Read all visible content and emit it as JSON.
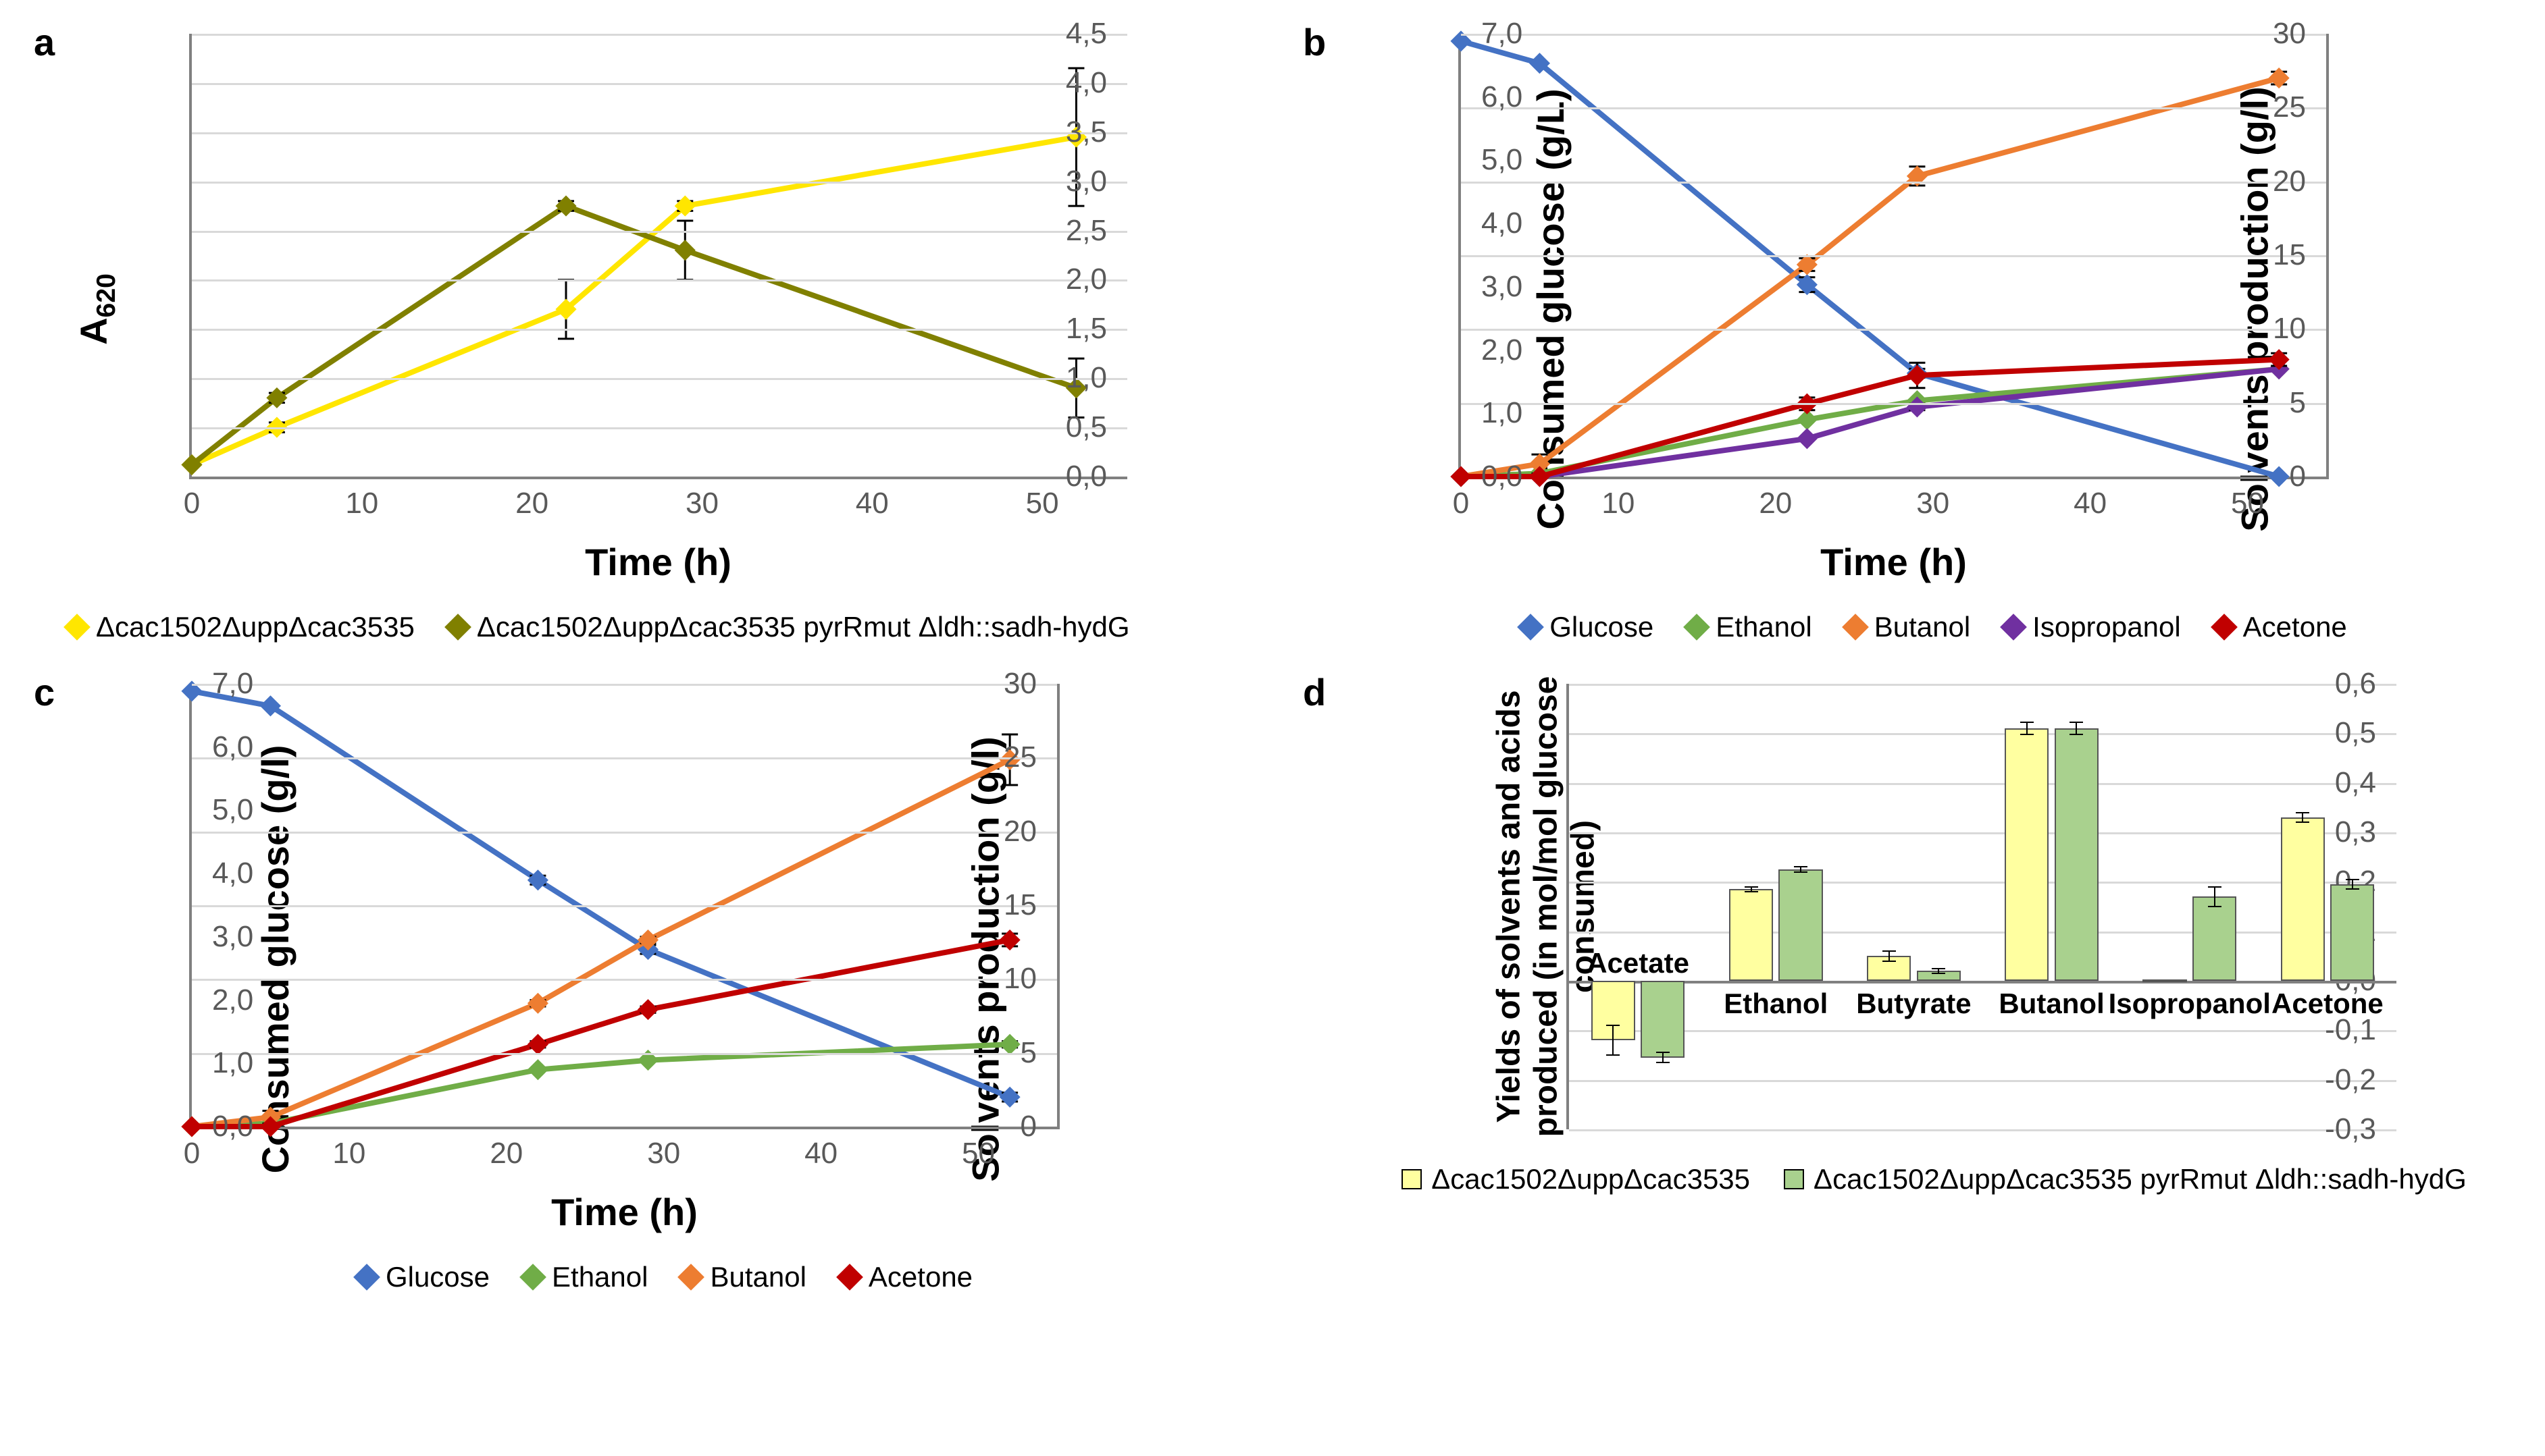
{
  "colors": {
    "yellow": "#ffe600",
    "olive": "#808000",
    "blue": "#4472c4",
    "green": "#70ad47",
    "orange": "#ed7d31",
    "purple": "#7030a0",
    "red": "#c00000",
    "grid": "#d9d9d9",
    "axis": "#808080",
    "bar_yellow": "#ffffa0",
    "bar_green": "#a9d18e"
  },
  "panel_a": {
    "type": "line",
    "label": "a",
    "xlabel": "Time (h)",
    "ylabel_html": "A<sub>620</sub>",
    "xlim": [
      0,
      55
    ],
    "ylim": [
      0,
      4.5
    ],
    "xticks": [
      0,
      10,
      20,
      30,
      40,
      50
    ],
    "yticks": [
      "0,0",
      "0,5",
      "1,0",
      "1,5",
      "2,0",
      "2,5",
      "3,0",
      "3,5",
      "4,0",
      "4,5"
    ],
    "ytick_vals": [
      0,
      0.5,
      1,
      1.5,
      2,
      2.5,
      3,
      3.5,
      4,
      4.5
    ],
    "series": [
      {
        "name": "Δcac1502ΔuppΔcac3535",
        "color": "#ffe600",
        "x": [
          0,
          5,
          22,
          29,
          52
        ],
        "y": [
          0.12,
          0.5,
          1.7,
          2.75,
          3.45
        ],
        "err": [
          0,
          0.05,
          0.3,
          0.05,
          0.7
        ]
      },
      {
        "name": "Δcac1502ΔuppΔcac3535 pyrRmut Δldh::sadh-hydG",
        "color": "#808000",
        "x": [
          0,
          5,
          22,
          29,
          52
        ],
        "y": [
          0.12,
          0.8,
          2.75,
          2.3,
          0.9
        ],
        "err": [
          0,
          0.05,
          0.05,
          0.3,
          0.3
        ]
      }
    ],
    "legend": [
      {
        "label": "Δcac1502ΔuppΔcac3535",
        "color": "#ffe600"
      },
      {
        "label": "Δcac1502ΔuppΔcac3535 pyrRmut Δldh::sadh-hydG",
        "color": "#808000"
      }
    ]
  },
  "panel_b": {
    "type": "line_dual",
    "label": "b",
    "xlabel": "Time (h)",
    "ylabel": "Consumed glucose (g/L)",
    "ylabel2": "Solvents production (g/l)",
    "xlim": [
      0,
      55
    ],
    "ylim": [
      0,
      30
    ],
    "ylim2": [
      0,
      7
    ],
    "xticks": [
      0,
      10,
      20,
      30,
      40,
      50
    ],
    "yticks": [
      0,
      5,
      10,
      15,
      20,
      25,
      30
    ],
    "yticks2": [
      "0,0",
      "1,0",
      "2,0",
      "3,0",
      "4,0",
      "5,0",
      "6,0",
      "7,0"
    ],
    "ytick2_vals": [
      0,
      1,
      2,
      3,
      4,
      5,
      6,
      7
    ],
    "series": [
      {
        "name": "Glucose",
        "axis": 1,
        "color": "#4472c4",
        "x": [
          0,
          5,
          22,
          29,
          52
        ],
        "y": [
          29.5,
          28,
          13,
          7,
          0
        ],
        "err": [
          0,
          0,
          0.5,
          0.3,
          0
        ]
      },
      {
        "name": "Ethanol",
        "axis": 2,
        "color": "#70ad47",
        "x": [
          0,
          5,
          22,
          29,
          52
        ],
        "y": [
          0,
          0.05,
          0.9,
          1.2,
          1.7
        ],
        "err": [
          0,
          0,
          0,
          0,
          0
        ]
      },
      {
        "name": "Butanol",
        "axis": 2,
        "color": "#ed7d31",
        "x": [
          0,
          5,
          22,
          29,
          52
        ],
        "y": [
          0,
          0.2,
          3.35,
          4.75,
          6.3
        ],
        "err": [
          0,
          0.15,
          0.1,
          0.15,
          0.1
        ]
      },
      {
        "name": "Isopropanol",
        "axis": 2,
        "color": "#7030a0",
        "x": [
          0,
          5,
          22,
          29,
          52
        ],
        "y": [
          0,
          0,
          0.6,
          1.1,
          1.7
        ],
        "err": [
          0,
          0,
          0,
          0.05,
          0
        ]
      },
      {
        "name": "Acetone",
        "axis": 2,
        "color": "#c00000",
        "x": [
          0,
          5,
          22,
          29,
          52
        ],
        "y": [
          0,
          0,
          1.15,
          1.6,
          1.85
        ],
        "err": [
          0,
          0,
          0.1,
          0.2,
          0.1
        ]
      }
    ],
    "legend": [
      {
        "label": "Glucose",
        "color": "#4472c4"
      },
      {
        "label": "Ethanol",
        "color": "#70ad47"
      },
      {
        "label": "Butanol",
        "color": "#ed7d31"
      },
      {
        "label": "Isopropanol",
        "color": "#7030a0"
      },
      {
        "label": "Acetone",
        "color": "#c00000"
      }
    ]
  },
  "panel_c": {
    "type": "line_dual",
    "label": "c",
    "xlabel": "Time (h)",
    "ylabel": "Consumed glucose (g/l)",
    "ylabel2": "Solvents production (g/l)",
    "xlim": [
      0,
      55
    ],
    "ylim": [
      0,
      30
    ],
    "ylim2": [
      0,
      7
    ],
    "xticks": [
      0,
      10,
      20,
      30,
      40,
      50
    ],
    "yticks": [
      0,
      5,
      10,
      15,
      20,
      25,
      30
    ],
    "yticks2": [
      "0,0",
      "1,0",
      "2,0",
      "3,0",
      "4,0",
      "5,0",
      "6,0",
      "7,0"
    ],
    "ytick2_vals": [
      0,
      1,
      2,
      3,
      4,
      5,
      6,
      7
    ],
    "series": [
      {
        "name": "Glucose",
        "axis": 1,
        "color": "#4472c4",
        "x": [
          0,
          5,
          22,
          29,
          52
        ],
        "y": [
          29.5,
          28.5,
          16.7,
          12,
          2
        ],
        "err": [
          0,
          0,
          0.3,
          0.3,
          0.3
        ]
      },
      {
        "name": "Ethanol",
        "axis": 2,
        "color": "#70ad47",
        "x": [
          0,
          5,
          22,
          29,
          52
        ],
        "y": [
          0,
          0.05,
          0.9,
          1.05,
          1.3
        ],
        "err": [
          0,
          0,
          0,
          0,
          0.05
        ]
      },
      {
        "name": "Butanol",
        "axis": 2,
        "color": "#ed7d31",
        "x": [
          0,
          5,
          22,
          29,
          52
        ],
        "y": [
          0,
          0.15,
          1.95,
          2.95,
          5.8
        ],
        "err": [
          0,
          0.1,
          0.05,
          0.05,
          0.4
        ]
      },
      {
        "name": "Acetone",
        "axis": 2,
        "color": "#c00000",
        "x": [
          0,
          5,
          22,
          29,
          52
        ],
        "y": [
          0,
          0,
          1.3,
          1.85,
          2.95
        ],
        "err": [
          0,
          0,
          0.05,
          0.05,
          0.1
        ]
      }
    ],
    "legend": [
      {
        "label": "Glucose",
        "color": "#4472c4"
      },
      {
        "label": "Ethanol",
        "color": "#70ad47"
      },
      {
        "label": "Butanol",
        "color": "#ed7d31"
      },
      {
        "label": "Acetone",
        "color": "#c00000"
      }
    ]
  },
  "panel_d": {
    "type": "bar",
    "label": "d",
    "ylabel": "Yields of solvents and acids produced (in mol/mol glucose consumed)",
    "ylim": [
      -0.3,
      0.6
    ],
    "yticks": [
      "-0,3",
      "-0,2",
      "-0,1",
      "0,0",
      "0,1",
      "0,2",
      "0,3",
      "0,4",
      "0,5",
      "0,6"
    ],
    "ytick_vals": [
      -0.3,
      -0.2,
      -0.1,
      0,
      0.1,
      0.2,
      0.3,
      0.4,
      0.5,
      0.6
    ],
    "categories": [
      "Acetate",
      "Ethanol",
      "Butyrate",
      "Butanol",
      "Isopropanol",
      "Acetone"
    ],
    "series": [
      {
        "name": "Δcac1502ΔuppΔcac3535",
        "color": "#ffffa0",
        "values": [
          -0.12,
          0.185,
          0.05,
          0.51,
          0.003,
          0.33
        ],
        "err": [
          0.03,
          0.005,
          0.01,
          0.012,
          0,
          0.01
        ]
      },
      {
        "name": "Δcac1502ΔuppΔcac3535 pyrRmut Δldh::sadh-hydG",
        "color": "#a9d18e",
        "values": [
          -0.155,
          0.225,
          0.02,
          0.51,
          0.17,
          0.195
        ],
        "err": [
          0.01,
          0.005,
          0.005,
          0.012,
          0.02,
          0.01
        ]
      }
    ],
    "legend": [
      {
        "label": "Δcac1502ΔuppΔcac3535",
        "color": "#ffffa0"
      },
      {
        "label": "Δcac1502ΔuppΔcac3535 pyrRmut Δldh::sadh-hydG",
        "color": "#a9d18e"
      }
    ]
  }
}
